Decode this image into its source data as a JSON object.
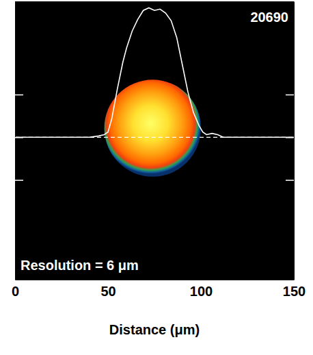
{
  "chart_data": {
    "type": "line",
    "x_label": "Distance (μm)",
    "annotations": [
      "20690",
      "Resolution = 6 μm"
    ],
    "x": [
      0,
      10,
      20,
      30,
      40,
      45,
      48,
      50,
      52,
      55,
      58,
      60,
      63,
      66,
      69,
      72,
      75,
      78,
      81,
      84,
      87,
      90,
      93,
      96,
      99,
      101,
      103,
      106,
      109,
      112,
      120,
      130,
      140,
      150
    ],
    "series": [
      {
        "color": "#ffffff",
        "line_style": "solid",
        "values": [
          0,
          0,
          0,
          0,
          0,
          0.01,
          0.02,
          0.04,
          0.14,
          0.37,
          0.58,
          0.69,
          0.82,
          0.91,
          0.98,
          1.0,
          0.98,
          0.99,
          0.96,
          0.9,
          0.77,
          0.56,
          0.35,
          0.19,
          0.09,
          0.04,
          0.02,
          0.03,
          0.02,
          0,
          0,
          0,
          0,
          0
        ]
      }
    ],
    "reference_line": 0,
    "spot": {
      "x": 74,
      "y": 0.07,
      "radius": 26
    },
    "xlim": [
      0,
      150
    ],
    "xticks": [
      0,
      50,
      100,
      150
    ],
    "ylim": [
      -1.1,
      1.05
    ],
    "yticks": [
      -0.33,
      0,
      0.33
    ],
    "tick_labels": "x",
    "grid": false
  }
}
